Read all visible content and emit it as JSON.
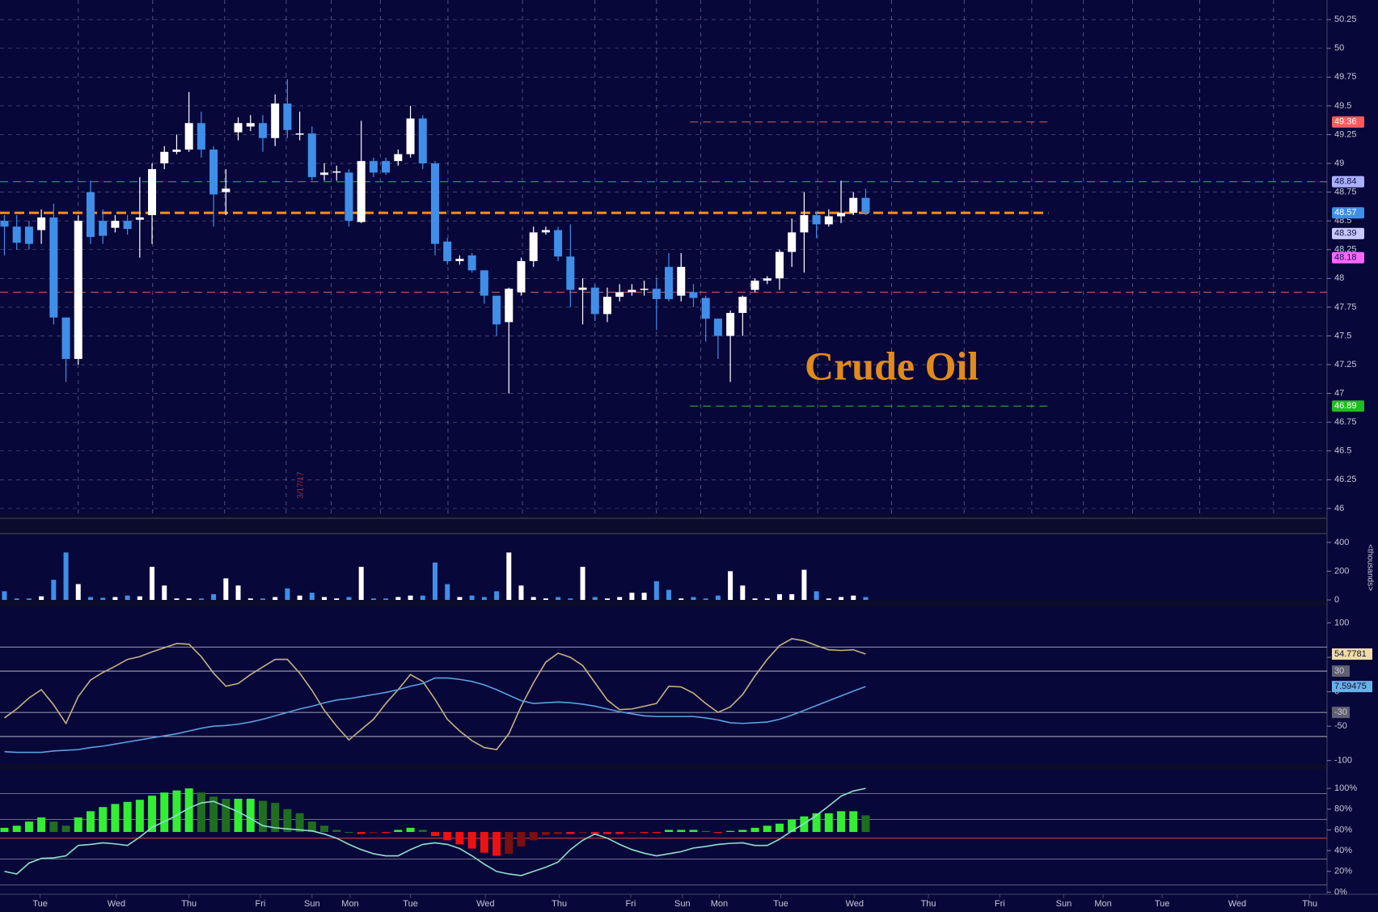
{
  "chart_data": [
    {
      "type": "candlestick",
      "annotation": "Crude Oil",
      "date_note": "3/17/17",
      "x": [
        0,
        1,
        2,
        3,
        4,
        5,
        6,
        7,
        8,
        9,
        10,
        11,
        12,
        13,
        14,
        15,
        16,
        17,
        18,
        19,
        20,
        21,
        22,
        23,
        24,
        25,
        26,
        27,
        28,
        29,
        30,
        31,
        32,
        33,
        34,
        35,
        36,
        37,
        38,
        39,
        40,
        41,
        42,
        43,
        44,
        45,
        46,
        47,
        48,
        49,
        50,
        51,
        52,
        53,
        54,
        55,
        56,
        57,
        58,
        59,
        60,
        61,
        62,
        63,
        64,
        65,
        66,
        67,
        68,
        69,
        70
      ],
      "open": [
        48.5,
        48.45,
        48.45,
        48.42,
        48.53,
        47.66,
        47.3,
        48.75,
        48.5,
        48.44,
        48.5,
        48.51,
        48.55,
        49.0,
        49.1,
        49.12,
        49.35,
        49.12,
        48.75,
        49.27,
        49.32,
        49.35,
        49.22,
        49.52,
        49.25,
        49.26,
        48.9,
        48.92,
        48.92,
        48.49,
        49.02,
        49.02,
        49.02,
        49.08,
        49.39,
        49.0,
        48.32,
        48.15,
        48.2,
        48.07,
        47.85,
        47.62,
        47.88,
        48.15,
        48.4,
        48.42,
        48.19,
        47.9,
        47.92,
        47.69,
        47.84,
        47.88,
        47.9,
        47.91,
        48.1,
        47.85,
        47.88,
        47.83,
        47.65,
        47.5,
        47.7,
        47.9,
        47.98,
        48.0,
        48.23,
        48.4,
        48.55,
        48.47,
        48.54,
        48.57,
        48.7
      ],
      "high": [
        48.55,
        48.55,
        48.5,
        48.6,
        48.65,
        47.66,
        48.55,
        48.85,
        48.6,
        48.55,
        48.55,
        48.88,
        49.0,
        49.15,
        49.25,
        49.62,
        49.45,
        49.15,
        48.95,
        49.4,
        49.42,
        49.42,
        49.6,
        49.73,
        49.45,
        49.32,
        49.0,
        48.98,
        48.95,
        49.37,
        49.05,
        49.05,
        49.12,
        49.5,
        49.42,
        49.02,
        48.35,
        48.2,
        48.22,
        48.07,
        47.85,
        47.92,
        48.18,
        48.45,
        48.45,
        48.45,
        48.47,
        48.0,
        47.95,
        47.92,
        47.95,
        47.95,
        47.98,
        48.0,
        48.22,
        48.22,
        47.95,
        47.85,
        47.65,
        47.72,
        47.85,
        48.0,
        48.02,
        48.25,
        48.52,
        48.75,
        48.58,
        48.6,
        48.85,
        48.75,
        48.78
      ],
      "low": [
        48.2,
        48.25,
        48.25,
        48.3,
        47.6,
        47.1,
        47.25,
        48.3,
        48.3,
        48.4,
        48.38,
        48.18,
        48.3,
        48.95,
        49.08,
        49.1,
        49.05,
        48.45,
        48.55,
        49.2,
        49.28,
        49.1,
        49.15,
        49.22,
        49.2,
        48.85,
        48.85,
        48.85,
        48.45,
        48.48,
        48.88,
        48.9,
        48.98,
        49.05,
        48.95,
        48.2,
        48.12,
        48.12,
        48.05,
        47.78,
        47.5,
        47.0,
        47.85,
        48.1,
        48.38,
        48.15,
        47.75,
        47.6,
        47.63,
        47.62,
        47.8,
        47.85,
        47.85,
        47.55,
        47.8,
        47.8,
        47.75,
        47.45,
        47.3,
        47.1,
        47.5,
        47.88,
        47.95,
        47.9,
        48.1,
        48.05,
        48.35,
        48.45,
        48.48,
        48.55,
        48.55
      ],
      "close": [
        48.45,
        48.31,
        48.3,
        48.53,
        47.66,
        47.3,
        48.5,
        48.36,
        48.37,
        48.5,
        48.43,
        48.53,
        48.95,
        49.1,
        49.12,
        49.35,
        49.12,
        48.73,
        48.78,
        49.35,
        49.35,
        49.22,
        49.52,
        49.29,
        49.26,
        48.88,
        48.92,
        48.93,
        48.5,
        49.02,
        48.92,
        48.92,
        49.08,
        49.39,
        49.0,
        48.3,
        48.15,
        48.17,
        48.07,
        47.85,
        47.6,
        47.91,
        48.15,
        48.4,
        48.42,
        48.19,
        47.9,
        47.92,
        47.69,
        47.84,
        47.88,
        47.9,
        47.91,
        47.82,
        47.82,
        48.1,
        47.83,
        47.65,
        47.5,
        47.7,
        47.84,
        47.98,
        48.0,
        48.23,
        48.4,
        48.55,
        48.47,
        48.54,
        48.57,
        48.7,
        48.57
      ],
      "up_color": "#ffffff",
      "down_color": "#3f8fe8",
      "xlim": [
        -0.36,
        107.5
      ],
      "xticks": [
        {
          "value": 2.9,
          "label": "Tue"
        },
        {
          "value": 9.1,
          "label": "Wed"
        },
        {
          "value": 15,
          "label": "Thu"
        },
        {
          "value": 20.8,
          "label": "Fri"
        },
        {
          "value": 25,
          "label": "Sun"
        },
        {
          "value": 28.1,
          "label": "Mon"
        },
        {
          "value": 33,
          "label": "Tue"
        },
        {
          "value": 39.1,
          "label": "Wed"
        },
        {
          "value": 45.1,
          "label": "Thu"
        },
        {
          "value": 50.9,
          "label": "Fri"
        },
        {
          "value": 55.1,
          "label": "Sun"
        },
        {
          "value": 58.1,
          "label": "Mon"
        },
        {
          "value": 63.1,
          "label": "Tue"
        },
        {
          "value": 69.1,
          "label": "Wed"
        },
        {
          "value": 75.1,
          "label": "Thu"
        },
        {
          "value": 80.9,
          "label": "Fri"
        },
        {
          "value": 86.1,
          "label": "Sun"
        },
        {
          "value": 89.3,
          "label": "Mon"
        },
        {
          "value": 94.1,
          "label": "Tue"
        },
        {
          "value": 100.2,
          "label": "Wed"
        },
        {
          "value": 106.1,
          "label": "Thu"
        }
      ],
      "ylim": [
        45.95,
        50.42
      ],
      "yticks": [
        46,
        46.25,
        46.5,
        46.75,
        47,
        47.25,
        47.5,
        47.75,
        48,
        48.25,
        48.5,
        48.75,
        49,
        49.25,
        49.5,
        49.75,
        50,
        50.25
      ],
      "grid": true,
      "levels": [
        {
          "value": 48.84,
          "color": "#3cb83c"
        },
        {
          "value": 48.57,
          "color": "#ff8c1a",
          "bold": true
        },
        {
          "value": 47.88,
          "color": "#d86060"
        },
        {
          "value": 49.36,
          "color": "#d86060",
          "short": true
        },
        {
          "value": 46.89,
          "color": "#3cb83c",
          "short": true
        }
      ],
      "price_tags": [
        {
          "value": 49.36,
          "color": "#ff5a5a",
          "text_color": "#ffffff"
        },
        {
          "value": 48.84,
          "color": "#aab0ff",
          "text_color": "#101040"
        },
        {
          "value": 48.57,
          "color": "#3f8fe8",
          "text_color": "#ffffff"
        },
        {
          "value": 48.39,
          "color": "#c8c8ff",
          "text_color": "#101040"
        },
        {
          "value": 48.18,
          "color": "#ff66ff",
          "text_color": "#101040"
        },
        {
          "value": 46.89,
          "color": "#22bb22",
          "text_color": "#ffffff"
        }
      ]
    },
    {
      "type": "volume",
      "ylabel": "<thousands>",
      "values": [
        60,
        10,
        10,
        25,
        140,
        330,
        110,
        20,
        15,
        20,
        30,
        25,
        230,
        100,
        10,
        10,
        10,
        40,
        150,
        100,
        10,
        10,
        20,
        80,
        30,
        50,
        20,
        10,
        20,
        230,
        10,
        10,
        20,
        30,
        30,
        260,
        110,
        20,
        30,
        20,
        60,
        330,
        100,
        20,
        10,
        20,
        10,
        230,
        20,
        10,
        20,
        50,
        50,
        130,
        70,
        10,
        20,
        10,
        30,
        200,
        100,
        10,
        10,
        40,
        40,
        210,
        60,
        10,
        20,
        30,
        20
      ],
      "ylim": [
        0,
        450
      ],
      "yticks": [
        0,
        200,
        400
      ]
    },
    {
      "type": "line",
      "series": [
        {
          "color": "#c8b080",
          "tag_color": "#f0dca8",
          "values": [
            -38,
            -25,
            -9,
            3,
            -19,
            -46,
            -7,
            17,
            28,
            37,
            47,
            51,
            58,
            64,
            70,
            69,
            51,
            27,
            8,
            12,
            25,
            36,
            47,
            47,
            27,
            2,
            -27,
            -50,
            -70,
            -55,
            -40,
            -17,
            3,
            25,
            15,
            -11,
            -40,
            -57,
            -71,
            -81,
            -84,
            -61,
            -21,
            13,
            43,
            56,
            50,
            38,
            13,
            -12,
            -26,
            -25,
            -21,
            -17,
            8,
            7,
            -2,
            -17,
            -30,
            -22,
            -4,
            23,
            47,
            67,
            77,
            74,
            67,
            61,
            60,
            61,
            54.7781
          ]
        },
        {
          "color": "#5aa0e0",
          "tag_color": "#6ab0e8",
          "values": [
            -87,
            -88,
            -88,
            -88,
            -86,
            -85,
            -84,
            -81,
            -79,
            -76,
            -73,
            -70,
            -67,
            -64,
            -61,
            -57,
            -53,
            -50,
            -49,
            -47,
            -44,
            -40,
            -35,
            -30,
            -25,
            -21,
            -16,
            -12,
            -10,
            -7,
            -4,
            -1,
            3,
            8,
            12,
            20,
            20,
            18,
            15,
            10,
            3,
            -5,
            -13,
            -17,
            -16,
            -15,
            -16,
            -18,
            -21,
            -25,
            -29,
            -32,
            -35,
            -36,
            -36,
            -36,
            -36,
            -38,
            -41,
            -45,
            -46,
            -45,
            -44,
            -40,
            -34,
            -27,
            -20,
            -13,
            -6,
            1,
            7.59475
          ]
        }
      ],
      "ylim": [
        -105,
        124
      ],
      "yticks": [
        100,
        50,
        0,
        -50,
        -100
      ],
      "levels": [
        65,
        30,
        -30,
        -65
      ],
      "level_tags": [
        30,
        -30
      ]
    },
    {
      "type": "combo",
      "bars": [
        62,
        64,
        68,
        72,
        68,
        64,
        72,
        78,
        82,
        85,
        87,
        89,
        93,
        96,
        98,
        100,
        96,
        92,
        90,
        90,
        90,
        88,
        86,
        80,
        76,
        68,
        64,
        60,
        58,
        56,
        57,
        57,
        60,
        62,
        60,
        54,
        50,
        46,
        42,
        38,
        35,
        37,
        44,
        50,
        55,
        56,
        56,
        57,
        56,
        56,
        56,
        57,
        57,
        57,
        60,
        60,
        60,
        59,
        57,
        59,
        60,
        62,
        64,
        66,
        70,
        73,
        76,
        76,
        78,
        78,
        74
      ],
      "base": 58,
      "bar_colors": {
        "up_rising": "#33ee33",
        "up_falling": "#1f6e1f",
        "down_falling": "#ee1111",
        "down_rising": "#7a1010"
      },
      "line": {
        "color": "#8fe0c8",
        "values": [
          20,
          17.5,
          28,
          32.5,
          33,
          35,
          45,
          46,
          47.5,
          46.5,
          45,
          53,
          62.5,
          68,
          74,
          81,
          86,
          87.5,
          82.5,
          77.5,
          71,
          64,
          62,
          61,
          60,
          59,
          56,
          52,
          46,
          41,
          37,
          35,
          35,
          41,
          46,
          47.5,
          46,
          42,
          35,
          27,
          20,
          17.5,
          16,
          20,
          24,
          29,
          41,
          50,
          56,
          52,
          46,
          41,
          37.5,
          35,
          37,
          39,
          42.5,
          44,
          46,
          47,
          47.5,
          45,
          45,
          51,
          59,
          66,
          74,
          83,
          92.5,
          97.5,
          100
        ]
      },
      "ylim": [
        -2,
        118
      ],
      "yticks": [
        {
          "value": 100,
          "label": "100%"
        },
        {
          "value": 80,
          "label": "80%"
        },
        {
          "value": 60,
          "label": "60%"
        },
        {
          "value": 40,
          "label": "40%"
        },
        {
          "value": 20,
          "label": "20%"
        },
        {
          "value": 0,
          "label": "0%"
        }
      ],
      "levels": [
        95,
        70,
        32,
        7
      ],
      "red_level": 52
    }
  ]
}
